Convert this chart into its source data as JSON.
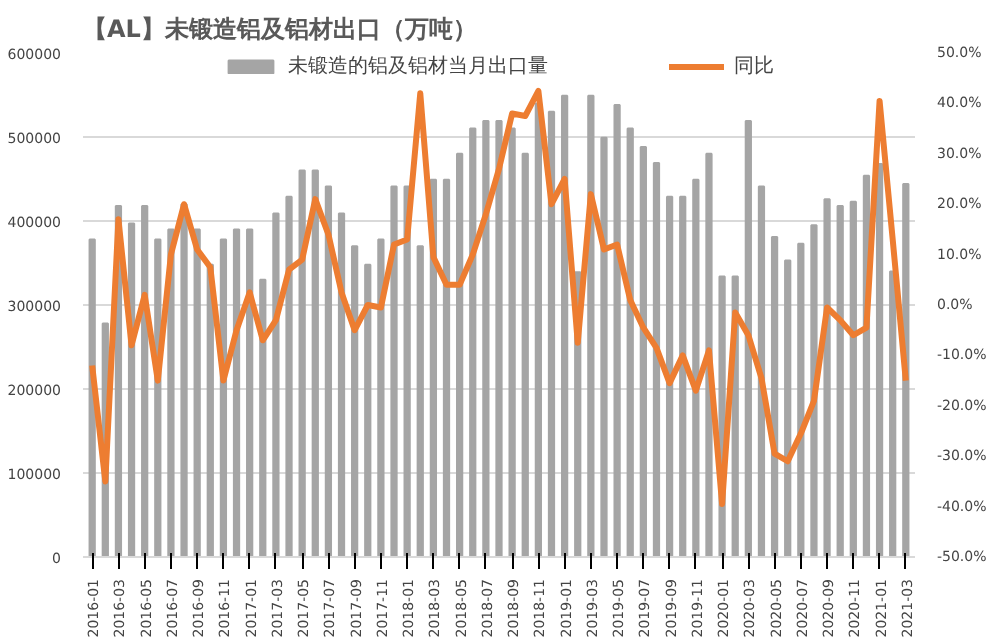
{
  "chart_data": {
    "type": "bar",
    "title": "【AL】未锻造铝及铝材出口（万吨）",
    "categories": [
      "2016-01",
      null,
      "2016-03",
      null,
      "2016-05",
      null,
      "2016-07",
      null,
      "2016-09",
      null,
      "2016-11",
      null,
      "2017-01",
      null,
      "2017-03",
      null,
      "2017-05",
      null,
      "2017-07",
      null,
      "2017-09",
      null,
      "2017-11",
      null,
      "2018-01",
      null,
      "2018-03",
      null,
      "2018-05",
      null,
      "2018-07",
      null,
      "2018-09",
      null,
      "2018-11",
      null,
      "2019-01",
      null,
      "2019-03",
      null,
      "2019-05",
      null,
      "2019-07",
      null,
      "2019-09",
      null,
      "2019-11",
      null,
      "2020-01",
      null,
      "2020-03",
      null,
      "2020-05",
      null,
      "2020-07",
      null,
      "2020-09",
      null,
      "2020-11",
      null,
      "2021-01",
      null,
      "2021-03"
    ],
    "series": [
      {
        "name": "未锻造的铝及铝材当月出口量",
        "color": "#a5a5a5",
        "values": [
          378000,
          278000,
          418000,
          397000,
          418000,
          378000,
          390000,
          420000,
          390000,
          348000,
          378000,
          390000,
          390000,
          330000,
          409000,
          429000,
          460000,
          460000,
          441000,
          409000,
          370000,
          348000,
          378000,
          441000,
          441000,
          370000,
          449000,
          449000,
          480000,
          510000,
          519000,
          519000,
          510000,
          480000,
          540000,
          530000,
          549000,
          339000,
          549000,
          499000,
          538000,
          510000,
          488000,
          469000,
          429000,
          429000,
          449000,
          480000,
          334000,
          334000,
          519000,
          441000,
          381000,
          353000,
          373000,
          395000,
          426000,
          418000,
          423000,
          454000,
          468000,
          340000,
          444000
        ]
      },
      {
        "name": "同比",
        "type": "line",
        "axis": "y2",
        "color": "#ed7d31",
        "values": [
          -12,
          -35,
          17,
          -8,
          2,
          -15,
          10,
          20,
          11,
          7.5,
          -15,
          -5,
          2.5,
          -7,
          -3,
          7,
          9,
          21,
          14,
          2.5,
          -5,
          0,
          -0.5,
          12,
          13,
          42,
          9.5,
          4,
          4,
          10,
          18,
          27,
          38,
          37.5,
          42.5,
          20,
          25,
          -7.5,
          22,
          11,
          12,
          1,
          -4.5,
          -8.5,
          -15.5,
          -10,
          -17,
          -9,
          -39.5,
          -1.5,
          -6,
          -14.5,
          -29.5,
          -31,
          -25.5,
          -19,
          -0.5,
          -3,
          -6,
          -4.5,
          40.5,
          13,
          -15
        ]
      }
    ],
    "ylim": [
      0,
      600000
    ],
    "yticks": [
      0,
      100000,
      200000,
      300000,
      400000,
      500000,
      600000
    ],
    "y2lim": [
      -50,
      50
    ],
    "y2ticks": [
      {
        "value": -50,
        "label": "-50.0%"
      },
      {
        "value": -40,
        "label": "-40.0%"
      },
      {
        "value": -30,
        "label": "-30.0%"
      },
      {
        "value": -20,
        "label": "-20.0%"
      },
      {
        "value": -10,
        "label": "-10.0%"
      },
      {
        "value": 0,
        "label": "0.0%"
      },
      {
        "value": 10,
        "label": "10.0%"
      },
      {
        "value": 20,
        "label": "20.0%"
      },
      {
        "value": 30,
        "label": "30.0%"
      },
      {
        "value": 40,
        "label": "40.0%"
      },
      {
        "value": 50,
        "label": "50.0%"
      }
    ],
    "grid": "y",
    "legend": "top",
    "line_style": "solid",
    "marker": "none"
  }
}
